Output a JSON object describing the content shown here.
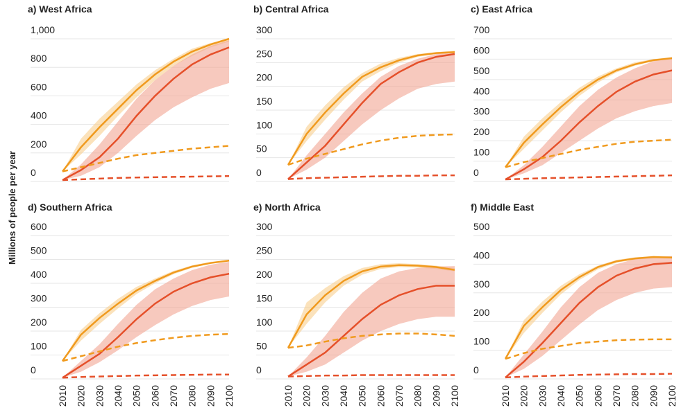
{
  "ylabel": "Millions of people per year",
  "chart_data": [
    {
      "type": "line",
      "title": "a) West Africa",
      "x": [
        2010,
        2020,
        2030,
        2040,
        2050,
        2060,
        2070,
        2080,
        2090,
        2100
      ],
      "xticks": [
        2010,
        2020,
        2030,
        2040,
        2050,
        2060,
        2070,
        2080,
        2090,
        2100
      ],
      "xlim": [
        2010,
        2100
      ],
      "ylim": [
        0,
        1000
      ],
      "yticks": [
        0,
        200,
        400,
        600,
        800,
        {
          "value": 1000,
          "label": "1,000"
        }
      ],
      "grid": true,
      "series": [
        {
          "color": "#f09a1e",
          "band_color": "#f9cf8e",
          "values": [
            70,
            240,
            380,
            510,
            640,
            750,
            840,
            910,
            960,
            1000
          ],
          "band_low": [
            70,
            190,
            320,
            460,
            590,
            710,
            810,
            880,
            940,
            980
          ],
          "band_high": [
            70,
            300,
            440,
            560,
            680,
            780,
            860,
            930,
            970,
            1000
          ]
        },
        {
          "color": "#e5502a",
          "band_color": "#f2a593",
          "values": [
            10,
            80,
            170,
            300,
            460,
            600,
            720,
            820,
            890,
            940
          ],
          "band_low": [
            10,
            40,
            100,
            200,
            320,
            430,
            520,
            590,
            650,
            690
          ],
          "band_high": [
            10,
            120,
            260,
            420,
            580,
            710,
            810,
            890,
            950,
            990
          ]
        },
        {
          "color": "#f09a1e",
          "dashed": true,
          "values": [
            70,
            100,
            130,
            160,
            185,
            200,
            215,
            230,
            240,
            250
          ]
        },
        {
          "color": "#e5502a",
          "dashed": true,
          "values": [
            10,
            15,
            20,
            25,
            28,
            30,
            32,
            34,
            36,
            38
          ]
        }
      ]
    },
    {
      "type": "line",
      "title": "b) Central Africa",
      "x": [
        2010,
        2020,
        2030,
        2040,
        2050,
        2060,
        2070,
        2080,
        2090,
        2100
      ],
      "xticks": [
        2010,
        2020,
        2030,
        2040,
        2050,
        2060,
        2070,
        2080,
        2090,
        2100
      ],
      "xlim": [
        2010,
        2100
      ],
      "ylim": [
        0,
        300
      ],
      "yticks": [
        0,
        50,
        100,
        150,
        200,
        250,
        300
      ],
      "grid": true,
      "series": [
        {
          "color": "#f09a1e",
          "band_color": "#f9cf8e",
          "values": [
            35,
            100,
            145,
            185,
            220,
            240,
            255,
            265,
            270,
            272
          ],
          "band_low": [
            35,
            85,
            130,
            172,
            210,
            232,
            250,
            262,
            268,
            270
          ],
          "band_high": [
            35,
            115,
            160,
            198,
            228,
            248,
            260,
            268,
            272,
            275
          ]
        },
        {
          "color": "#e5502a",
          "band_color": "#f2a593",
          "values": [
            5,
            40,
            75,
            120,
            165,
            205,
            230,
            250,
            262,
            268
          ],
          "band_low": [
            5,
            25,
            50,
            85,
            120,
            150,
            175,
            195,
            205,
            210
          ],
          "band_high": [
            5,
            55,
            100,
            145,
            185,
            220,
            243,
            258,
            268,
            274
          ]
        },
        {
          "color": "#f09a1e",
          "dashed": true,
          "values": [
            35,
            48,
            58,
            68,
            78,
            86,
            92,
            96,
            98,
            99
          ]
        },
        {
          "color": "#e5502a",
          "dashed": true,
          "values": [
            5,
            7,
            8,
            9,
            10,
            11,
            12,
            12,
            13,
            13
          ]
        }
      ]
    },
    {
      "type": "line",
      "title": "c) East Africa",
      "x": [
        2010,
        2020,
        2030,
        2040,
        2050,
        2060,
        2070,
        2080,
        2090,
        2100
      ],
      "xticks": [
        2010,
        2020,
        2030,
        2040,
        2050,
        2060,
        2070,
        2080,
        2090,
        2100
      ],
      "xlim": [
        2010,
        2100
      ],
      "ylim": [
        0,
        700
      ],
      "yticks": [
        0,
        100,
        200,
        300,
        400,
        500,
        600,
        700
      ],
      "grid": true,
      "series": [
        {
          "color": "#f09a1e",
          "band_color": "#f9cf8e",
          "values": [
            70,
            190,
            280,
            365,
            440,
            500,
            545,
            575,
            595,
            605
          ],
          "band_low": [
            70,
            160,
            250,
            340,
            420,
            485,
            535,
            568,
            590,
            602
          ],
          "band_high": [
            70,
            220,
            310,
            390,
            460,
            515,
            555,
            585,
            600,
            610
          ]
        },
        {
          "color": "#e5502a",
          "band_color": "#f2a593",
          "values": [
            10,
            60,
            120,
            200,
            290,
            370,
            440,
            490,
            525,
            545
          ],
          "band_low": [
            10,
            40,
            80,
            140,
            200,
            260,
            310,
            345,
            370,
            385
          ],
          "band_high": [
            10,
            80,
            170,
            270,
            370,
            450,
            510,
            555,
            590,
            610
          ]
        },
        {
          "color": "#f09a1e",
          "dashed": true,
          "values": [
            70,
            95,
            115,
            135,
            155,
            170,
            185,
            195,
            200,
            205
          ]
        },
        {
          "color": "#e5502a",
          "dashed": true,
          "values": [
            10,
            13,
            16,
            18,
            20,
            22,
            24,
            26,
            28,
            30
          ]
        }
      ]
    },
    {
      "type": "line",
      "title": "d) Southern Africa",
      "x": [
        2010,
        2020,
        2030,
        2040,
        2050,
        2060,
        2070,
        2080,
        2090,
        2100
      ],
      "xticks": [
        2010,
        2020,
        2030,
        2040,
        2050,
        2060,
        2070,
        2080,
        2090,
        2100
      ],
      "xlim": [
        2010,
        2100
      ],
      "ylim": [
        0,
        600
      ],
      "yticks": [
        0,
        100,
        200,
        300,
        400,
        500,
        600
      ],
      "grid": true,
      "series": [
        {
          "color": "#f09a1e",
          "band_color": "#f9cf8e",
          "values": [
            75,
            185,
            255,
            315,
            370,
            410,
            445,
            470,
            485,
            495
          ],
          "band_low": [
            75,
            160,
            230,
            295,
            355,
            400,
            438,
            465,
            482,
            492
          ],
          "band_high": [
            75,
            205,
            275,
            335,
            385,
            420,
            452,
            475,
            490,
            498
          ]
        },
        {
          "color": "#e5502a",
          "band_color": "#f2a593",
          "values": [
            5,
            55,
            105,
            175,
            250,
            315,
            365,
            400,
            425,
            440
          ],
          "band_low": [
            5,
            30,
            70,
            120,
            175,
            225,
            270,
            305,
            330,
            345
          ],
          "band_high": [
            5,
            75,
            145,
            230,
            310,
            375,
            420,
            455,
            478,
            490
          ]
        },
        {
          "color": "#f09a1e",
          "dashed": true,
          "values": [
            75,
            95,
            115,
            135,
            150,
            162,
            172,
            180,
            185,
            188
          ]
        },
        {
          "color": "#e5502a",
          "dashed": true,
          "values": [
            5,
            8,
            10,
            12,
            14,
            15,
            16,
            17,
            18,
            18
          ]
        }
      ]
    },
    {
      "type": "line",
      "title": "e) North Africa",
      "x": [
        2010,
        2020,
        2030,
        2040,
        2050,
        2060,
        2070,
        2080,
        2090,
        2100
      ],
      "xticks": [
        2010,
        2020,
        2030,
        2040,
        2050,
        2060,
        2070,
        2080,
        2090,
        2100
      ],
      "xlim": [
        2010,
        2100
      ],
      "ylim": [
        0,
        300
      ],
      "yticks": [
        0,
        50,
        100,
        150,
        200,
        250,
        300
      ],
      "grid": true,
      "series": [
        {
          "color": "#f09a1e",
          "band_color": "#f9cf8e",
          "values": [
            65,
            135,
            175,
            205,
            225,
            235,
            238,
            237,
            234,
            228
          ],
          "band_low": [
            65,
            115,
            160,
            195,
            218,
            230,
            234,
            233,
            230,
            225
          ],
          "band_high": [
            65,
            160,
            190,
            215,
            232,
            240,
            242,
            240,
            237,
            232
          ]
        },
        {
          "color": "#e5502a",
          "band_color": "#f2a593",
          "values": [
            5,
            30,
            55,
            90,
            125,
            155,
            175,
            188,
            195,
            195
          ],
          "band_low": [
            5,
            15,
            30,
            55,
            80,
            100,
            115,
            125,
            130,
            130
          ],
          "band_high": [
            5,
            45,
            90,
            140,
            180,
            210,
            225,
            232,
            235,
            236
          ]
        },
        {
          "color": "#f09a1e",
          "dashed": true,
          "values": [
            65,
            70,
            78,
            85,
            90,
            93,
            95,
            95,
            93,
            90
          ]
        },
        {
          "color": "#e5502a",
          "dashed": true,
          "values": [
            5,
            6,
            7,
            7,
            8,
            8,
            8,
            8,
            8,
            8
          ]
        }
      ]
    },
    {
      "type": "line",
      "title": "f) Middle East",
      "x": [
        2010,
        2020,
        2030,
        2040,
        2050,
        2060,
        2070,
        2080,
        2090,
        2100
      ],
      "xticks": [
        2010,
        2020,
        2030,
        2040,
        2050,
        2060,
        2070,
        2080,
        2090,
        2100
      ],
      "xlim": [
        2010,
        2100
      ],
      "ylim": [
        0,
        500
      ],
      "yticks": [
        0,
        100,
        200,
        300,
        400,
        500
      ],
      "grid": true,
      "series": [
        {
          "color": "#f09a1e",
          "band_color": "#f9cf8e",
          "values": [
            70,
            185,
            250,
            310,
            355,
            390,
            410,
            420,
            425,
            423
          ],
          "band_low": [
            70,
            160,
            230,
            295,
            345,
            382,
            405,
            416,
            420,
            420
          ],
          "band_high": [
            70,
            205,
            270,
            325,
            365,
            395,
            415,
            424,
            428,
            428
          ]
        },
        {
          "color": "#e5502a",
          "band_color": "#f2a593",
          "values": [
            5,
            60,
            125,
            195,
            265,
            320,
            360,
            385,
            400,
            405
          ],
          "band_low": [
            5,
            35,
            80,
            135,
            190,
            240,
            275,
            300,
            315,
            320
          ],
          "band_high": [
            5,
            85,
            165,
            250,
            320,
            370,
            400,
            418,
            425,
            428
          ]
        },
        {
          "color": "#f09a1e",
          "dashed": true,
          "values": [
            70,
            90,
            105,
            115,
            125,
            130,
            135,
            137,
            138,
            138
          ]
        },
        {
          "color": "#e5502a",
          "dashed": true,
          "values": [
            5,
            8,
            10,
            12,
            14,
            15,
            16,
            17,
            17,
            18
          ]
        }
      ]
    }
  ]
}
